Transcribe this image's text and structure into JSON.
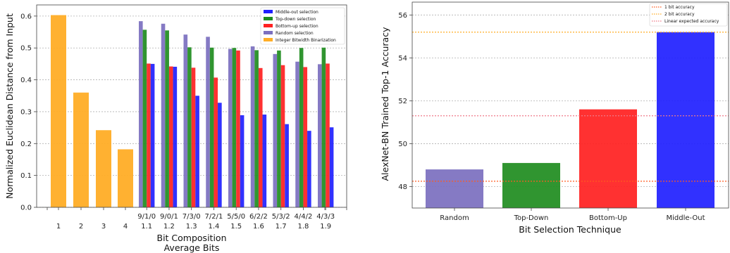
{
  "colors": {
    "middle_out": "#1f1fff",
    "top_down": "#1e8c1e",
    "bottom_up": "#ff2020",
    "random": "#7b6fbf",
    "integer": "#ffad26"
  },
  "chart_data": [
    {
      "type": "bar",
      "ylabel": "Normalized Euclidean Distance from Input",
      "xlabel_line1": "Bit Composition",
      "xlabel_line2": "Average Bits",
      "ylim": [
        0,
        0.635
      ],
      "yticks": [
        "0.0",
        "0.1",
        "0.2",
        "0.3",
        "0.4",
        "0.5",
        "0.6"
      ],
      "grid": "horizontal dotted",
      "legend_position": "top-right",
      "legend": [
        "Middle-out selection",
        "Top-down selection",
        "Bottom-up selection",
        "Random selection",
        "Integer Bitwidth Binarization"
      ],
      "integer_categories": [
        "1",
        "2",
        "3",
        "4"
      ],
      "integer_values": [
        0.603,
        0.36,
        0.242,
        0.182
      ],
      "composite_categories": [
        {
          "composition": "9/1/0",
          "average": "1.1"
        },
        {
          "composition": "9/0/1",
          "average": "1.2"
        },
        {
          "composition": "7/3/0",
          "average": "1.3"
        },
        {
          "composition": "7/2/1",
          "average": "1.4"
        },
        {
          "composition": "5/5/0",
          "average": "1.5"
        },
        {
          "composition": "6/2/2",
          "average": "1.6"
        },
        {
          "composition": "5/3/2",
          "average": "1.7"
        },
        {
          "composition": "4/4/2",
          "average": "1.8"
        },
        {
          "composition": "4/3/3",
          "average": "1.9"
        }
      ],
      "series": [
        {
          "name": "Random selection",
          "values": [
            0.584,
            0.576,
            0.542,
            0.535,
            0.497,
            0.505,
            0.481,
            0.457,
            0.449
          ]
        },
        {
          "name": "Top-down selection",
          "values": [
            0.557,
            0.555,
            0.502,
            0.501,
            0.5,
            0.493,
            0.492,
            0.5,
            0.501
          ]
        },
        {
          "name": "Bottom-up selection",
          "values": [
            0.451,
            0.442,
            0.438,
            0.407,
            0.492,
            0.437,
            0.446,
            0.44,
            0.451
          ]
        },
        {
          "name": "Middle-out selection",
          "values": [
            0.45,
            0.441,
            0.35,
            0.328,
            0.289,
            0.291,
            0.261,
            0.24,
            0.251
          ]
        }
      ]
    },
    {
      "type": "bar",
      "ylabel": "AlexNet-BN Trained Top-1 Accuracy",
      "xlabel": "Bit Selection Technique",
      "ylim": [
        47.0,
        56.6
      ],
      "yticks": [
        "48",
        "50",
        "52",
        "54",
        "56"
      ],
      "grid": "horizontal dotted",
      "legend_position": "top-right",
      "categories": [
        "Random",
        "Top-Down",
        "Bottom-Up",
        "Middle-Out"
      ],
      "values": [
        48.8,
        49.1,
        51.6,
        55.2
      ],
      "reference_lines": [
        {
          "name": "1 bit accuracy",
          "value": 48.25
        },
        {
          "name": "2 bit accuracy",
          "value": 55.2
        },
        {
          "name": "Linear expected accuracy",
          "value": 51.3
        }
      ]
    }
  ]
}
